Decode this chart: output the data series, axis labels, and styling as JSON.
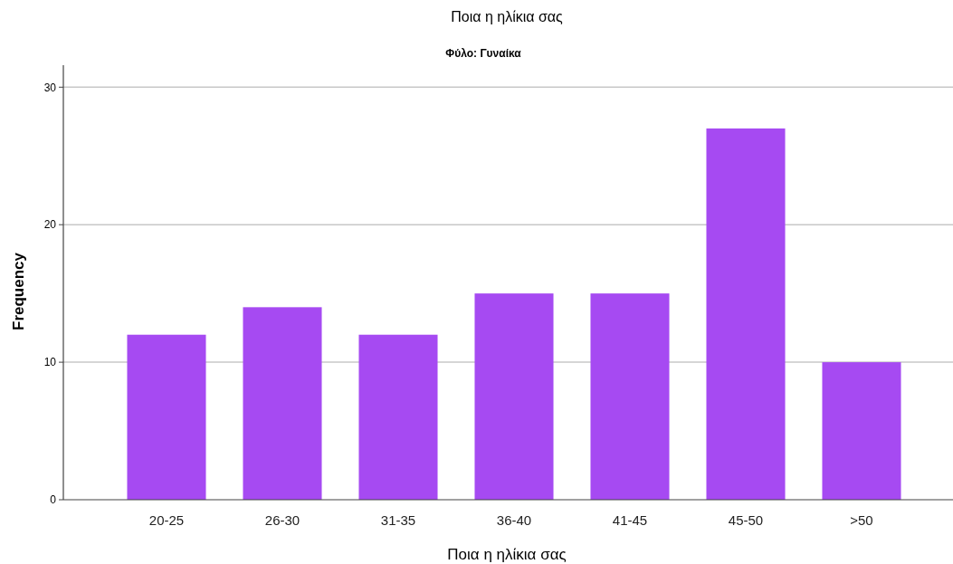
{
  "chart_data": {
    "type": "bar",
    "title": "Ποια η ηλίκια σας",
    "subtitle": "Φύλο: Γυναίκα",
    "xlabel": "Ποια η ηλίκια σας",
    "ylabel": "Frequency",
    "categories": [
      "20-25",
      "26-30",
      "31-35",
      "36-40",
      "41-45",
      "45-50",
      ">50"
    ],
    "values": [
      12,
      14,
      12,
      15,
      15,
      27,
      10
    ],
    "color": "#a64af2",
    "ylim": [
      0,
      31.6
    ],
    "yticks": [
      0,
      10,
      20,
      30
    ],
    "grid": "y"
  }
}
